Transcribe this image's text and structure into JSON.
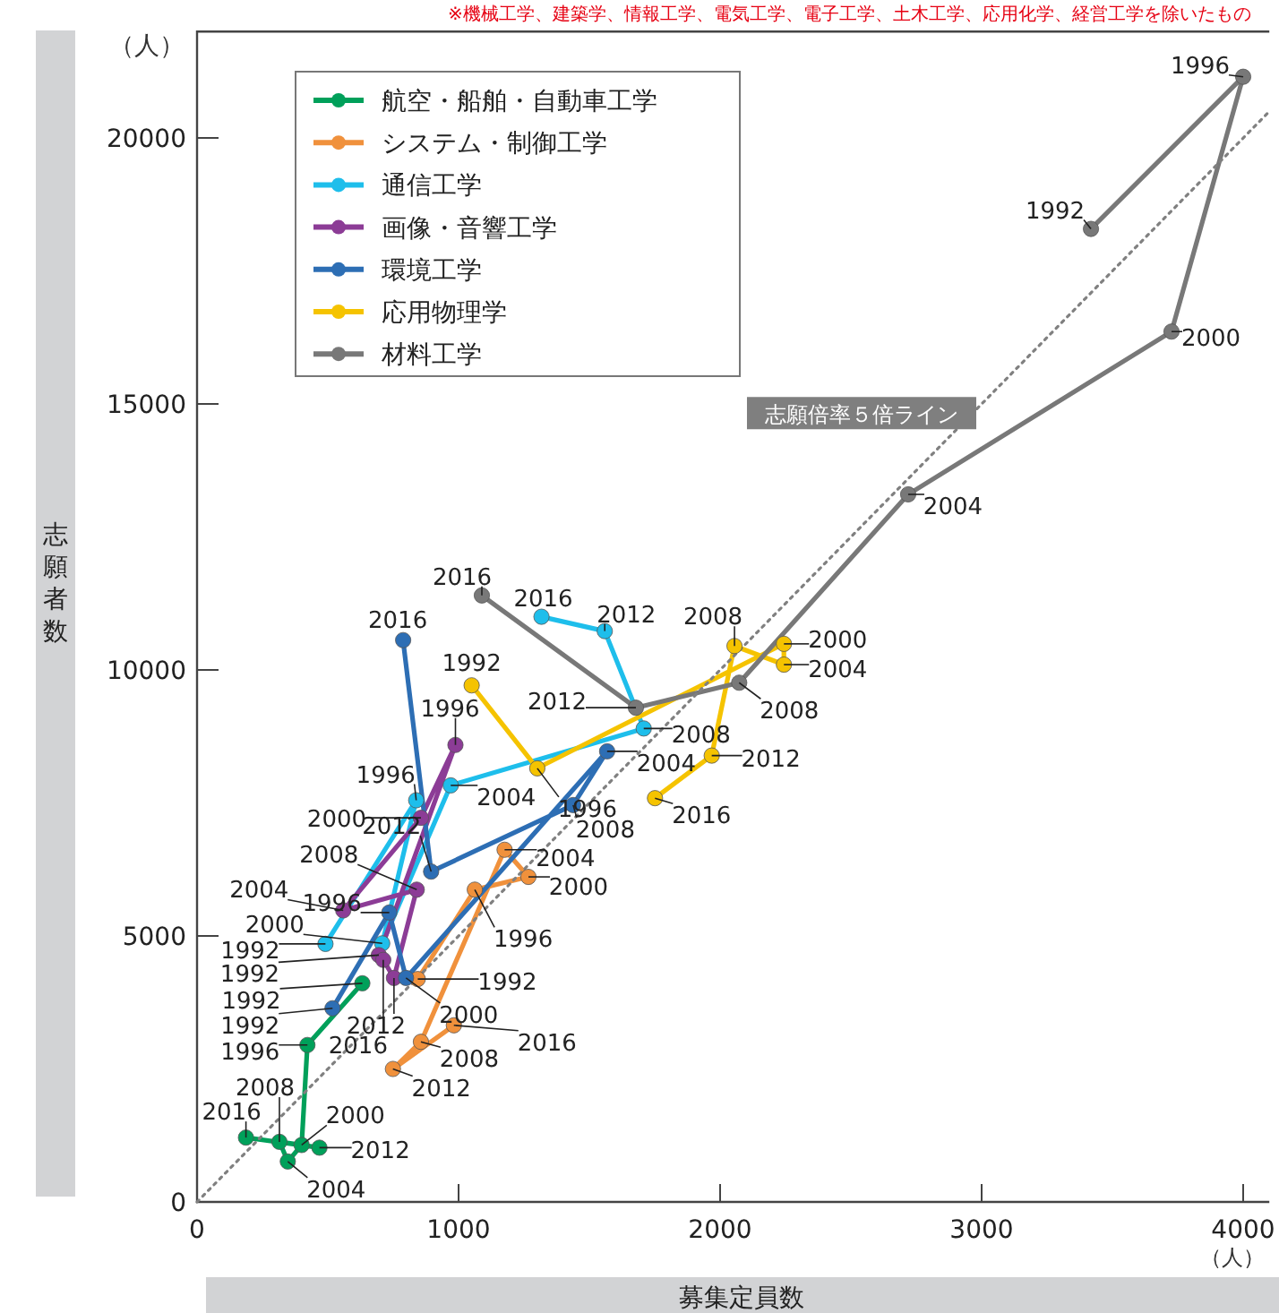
{
  "chart_data": {
    "type": "line",
    "xlabel": "募集定員数",
    "ylabel": "志願者数",
    "annotations": [
      "※機械工学、建築学、情報工学、電気工学、電子工学、土木工学、応用化学、経営工学を除いたもの",
      "（人）",
      "（人）",
      {
        "text": "1992",
        "x": 632,
        "y": 4110
      },
      {
        "text": "1996",
        "x": 422,
        "y": 2950
      },
      {
        "text": "2000",
        "x": 400,
        "y": 1070
      },
      {
        "text": "2004",
        "x": 347,
        "y": 760
      },
      {
        "text": "2008",
        "x": 315,
        "y": 1130
      },
      {
        "text": "2012",
        "x": 468,
        "y": 1020
      },
      {
        "text": "2016",
        "x": 187,
        "y": 1210
      },
      {
        "text": "1992",
        "x": 844,
        "y": 4190
      },
      {
        "text": "1996",
        "x": 1062,
        "y": 5870
      },
      {
        "text": "2000",
        "x": 1267,
        "y": 6110
      },
      {
        "text": "2004",
        "x": 1176,
        "y": 6620
      },
      {
        "text": "2008",
        "x": 856,
        "y": 3010
      },
      {
        "text": "2012",
        "x": 749,
        "y": 2500
      },
      {
        "text": "2016",
        "x": 982,
        "y": 3320
      },
      {
        "text": "1992",
        "x": 491,
        "y": 4850
      },
      {
        "text": "1996",
        "x": 838,
        "y": 7550
      },
      {
        "text": "2000",
        "x": 708,
        "y": 4860
      },
      {
        "text": "2004",
        "x": 970,
        "y": 7830
      },
      {
        "text": "2008",
        "x": 1708,
        "y": 8900
      },
      {
        "text": "2012",
        "x": 1559,
        "y": 10730
      },
      {
        "text": "2016",
        "x": 1317,
        "y": 11000
      },
      {
        "text": "1992",
        "x": 695,
        "y": 4640
      },
      {
        "text": "1996",
        "x": 988,
        "y": 8590
      },
      {
        "text": "2000",
        "x": 856,
        "y": 7220
      },
      {
        "text": "2004",
        "x": 559,
        "y": 5480
      },
      {
        "text": "2008",
        "x": 840,
        "y": 5870
      },
      {
        "text": "2012",
        "x": 753,
        "y": 4210
      },
      {
        "text": "2016",
        "x": 712,
        "y": 4550
      },
      {
        "text": "1992",
        "x": 518,
        "y": 3640
      },
      {
        "text": "1996",
        "x": 735,
        "y": 5440
      },
      {
        "text": "2000",
        "x": 799,
        "y": 4210
      },
      {
        "text": "2004",
        "x": 1568,
        "y": 8470
      },
      {
        "text": "2008",
        "x": 1438,
        "y": 7460
      },
      {
        "text": "2012",
        "x": 895,
        "y": 6210
      },
      {
        "text": "2016",
        "x": 788,
        "y": 10560
      },
      {
        "text": "1992",
        "x": 1050,
        "y": 9710
      },
      {
        "text": "1996",
        "x": 1301,
        "y": 8150
      },
      {
        "text": "2000",
        "x": 2244,
        "y": 10490
      },
      {
        "text": "2004",
        "x": 2244,
        "y": 10100
      },
      {
        "text": "2008",
        "x": 2055,
        "y": 10450
      },
      {
        "text": "2012",
        "x": 1968,
        "y": 8390
      },
      {
        "text": "2016",
        "x": 1751,
        "y": 7590
      },
      {
        "text": "1992",
        "x": 3418,
        "y": 18290
      },
      {
        "text": "1996",
        "x": 4000,
        "y": 21150
      },
      {
        "text": "2000",
        "x": 3726,
        "y": 16360
      },
      {
        "text": "2004",
        "x": 2719,
        "y": 13300
      },
      {
        "text": "2008",
        "x": 2073,
        "y": 9760
      },
      {
        "text": "2012",
        "x": 1678,
        "y": 9290
      },
      {
        "text": "2016",
        "x": 1089,
        "y": 11400
      }
    ],
    "xlim": [
      0,
      4100
    ],
    "ylim": [
      0,
      22000
    ],
    "xticks": [
      0,
      1000,
      2000,
      3000,
      4000
    ],
    "yticks": [
      0,
      5000,
      10000,
      15000,
      20000
    ],
    "marker": "circle",
    "line_style": "solid",
    "legend": "top left",
    "grid": false,
    "series": [
      {
        "name": "航空・船舶・自動車工学",
        "color": "#00a05a",
        "x": [
          632,
          422,
          400,
          347,
          315,
          468,
          187
        ],
        "values": [
          4110,
          2950,
          1070,
          760,
          1130,
          1020,
          1210
        ]
      },
      {
        "name": "システム・制御工学",
        "color": "#f0913c",
        "x": [
          844,
          1062,
          1267,
          1176,
          856,
          749,
          982
        ],
        "values": [
          4190,
          5870,
          6110,
          6620,
          3010,
          2500,
          3320
        ]
      },
      {
        "name": "通信工学",
        "color": "#1ebeeb",
        "x": [
          491,
          838,
          708,
          970,
          1708,
          1559,
          1317
        ],
        "values": [
          4850,
          7550,
          4860,
          7830,
          8900,
          10730,
          11000
        ]
      },
      {
        "name": "画像・音響工学",
        "color": "#8c3c96",
        "x": [
          695,
          988,
          856,
          559,
          840,
          753,
          712
        ],
        "values": [
          4640,
          8590,
          7220,
          5480,
          5870,
          4210,
          4550
        ]
      },
      {
        "name": "環境工学",
        "color": "#2d6eb4",
        "x": [
          518,
          735,
          799,
          1568,
          1438,
          895,
          788
        ],
        "values": [
          3640,
          5440,
          4210,
          8470,
          7460,
          6210,
          10560
        ]
      },
      {
        "name": "応用物理学",
        "color": "#f5c300",
        "x": [
          1050,
          1301,
          2244,
          2244,
          2055,
          1968,
          1751
        ],
        "values": [
          9710,
          8150,
          10490,
          10100,
          10450,
          8390,
          7590
        ]
      },
      {
        "name": "材料工学",
        "color": "#787878",
        "x": [
          3418,
          4000,
          3726,
          2719,
          2073,
          1678,
          1089
        ],
        "values": [
          18290,
          21150,
          16360,
          13300,
          9760,
          9290,
          11400
        ]
      },
      {
        "name": "志願倍率５倍ライン",
        "type": "line",
        "color": "#808080",
        "line_style": "dotted",
        "marker": "none",
        "x": [
          0,
          4100
        ],
        "values": [
          0,
          20500
        ]
      }
    ]
  }
}
